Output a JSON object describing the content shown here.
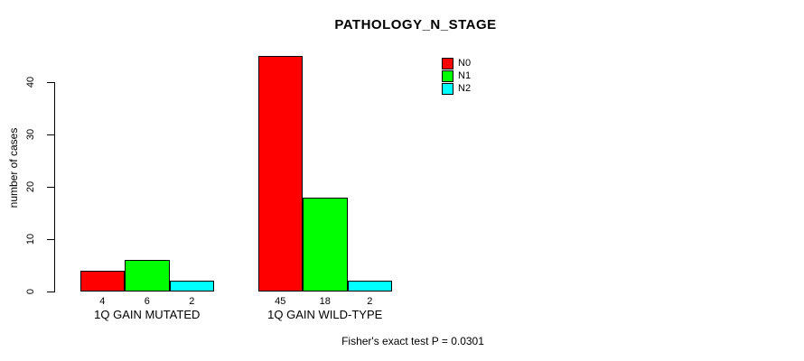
{
  "title": "PATHOLOGY_N_STAGE",
  "y_axis_title": "number of cases",
  "footnote": "Fisher's exact test P = 0.0301",
  "colors": {
    "background": "#ffffff",
    "axis": "#000000",
    "n0": "#ff0000",
    "n1": "#00ff00",
    "n2": "#00ffff"
  },
  "chart_data": {
    "type": "bar",
    "title": "PATHOLOGY_N_STAGE",
    "xlabel": "",
    "ylabel": "number of cases",
    "categories": [
      "1Q GAIN MUTATED",
      "1Q GAIN WILD-TYPE"
    ],
    "series": [
      {
        "name": "N0",
        "color": "#ff0000",
        "values": [
          4,
          45
        ]
      },
      {
        "name": "N1",
        "color": "#00ff00",
        "values": [
          6,
          18
        ]
      },
      {
        "name": "N2",
        "color": "#00ffff",
        "values": [
          2,
          2
        ]
      }
    ],
    "bar_value_labels": [
      [
        4,
        6,
        2
      ],
      [
        45,
        18,
        2
      ]
    ],
    "ylim": [
      0,
      45
    ],
    "yticks": [
      0,
      10,
      20,
      30,
      40
    ],
    "grid": false,
    "legend_position": "top-right",
    "annotation": "Fisher's exact test P = 0.0301"
  }
}
